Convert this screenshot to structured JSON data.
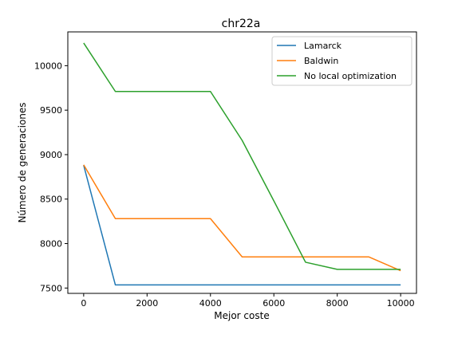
{
  "chart_data": {
    "type": "line",
    "title": "chr22a",
    "xlabel": "Mejor coste",
    "ylabel": "Número de generaciones",
    "xlim": [
      -500,
      10500
    ],
    "ylim": [
      7440,
      10380
    ],
    "xticks": [
      0,
      2000,
      4000,
      6000,
      8000,
      10000
    ],
    "xtick_labels": [
      "0",
      "2000",
      "4000",
      "6000",
      "8000",
      "10000"
    ],
    "yticks": [
      7500,
      8000,
      8500,
      9000,
      9500,
      10000
    ],
    "ytick_labels": [
      "7500",
      "8000",
      "8500",
      "9000",
      "9500",
      "10000"
    ],
    "grid": false,
    "legend_position": "top-right",
    "series": [
      {
        "name": "Lamarck",
        "color": "#1f77b4",
        "x": [
          0,
          1000,
          2000,
          3000,
          4000,
          5000,
          6000,
          7000,
          8000,
          9000,
          10000
        ],
        "values": [
          8880,
          7535,
          7535,
          7535,
          7535,
          7535,
          7535,
          7535,
          7535,
          7535,
          7535
        ]
      },
      {
        "name": "Baldwin",
        "color": "#ff7f0e",
        "x": [
          0,
          1000,
          2000,
          3000,
          4000,
          5000,
          6000,
          7000,
          8000,
          9000,
          10000
        ],
        "values": [
          8885,
          8280,
          8280,
          8280,
          8280,
          7850,
          7850,
          7850,
          7850,
          7850,
          7695
        ]
      },
      {
        "name": "No local optimization",
        "color": "#2ca02c",
        "x": [
          0,
          1000,
          2000,
          3000,
          4000,
          5000,
          6000,
          7000,
          8000,
          9000,
          10000
        ],
        "values": [
          10255,
          9710,
          9710,
          9710,
          9710,
          9160,
          8480,
          7790,
          7710,
          7710,
          7710
        ]
      }
    ]
  }
}
